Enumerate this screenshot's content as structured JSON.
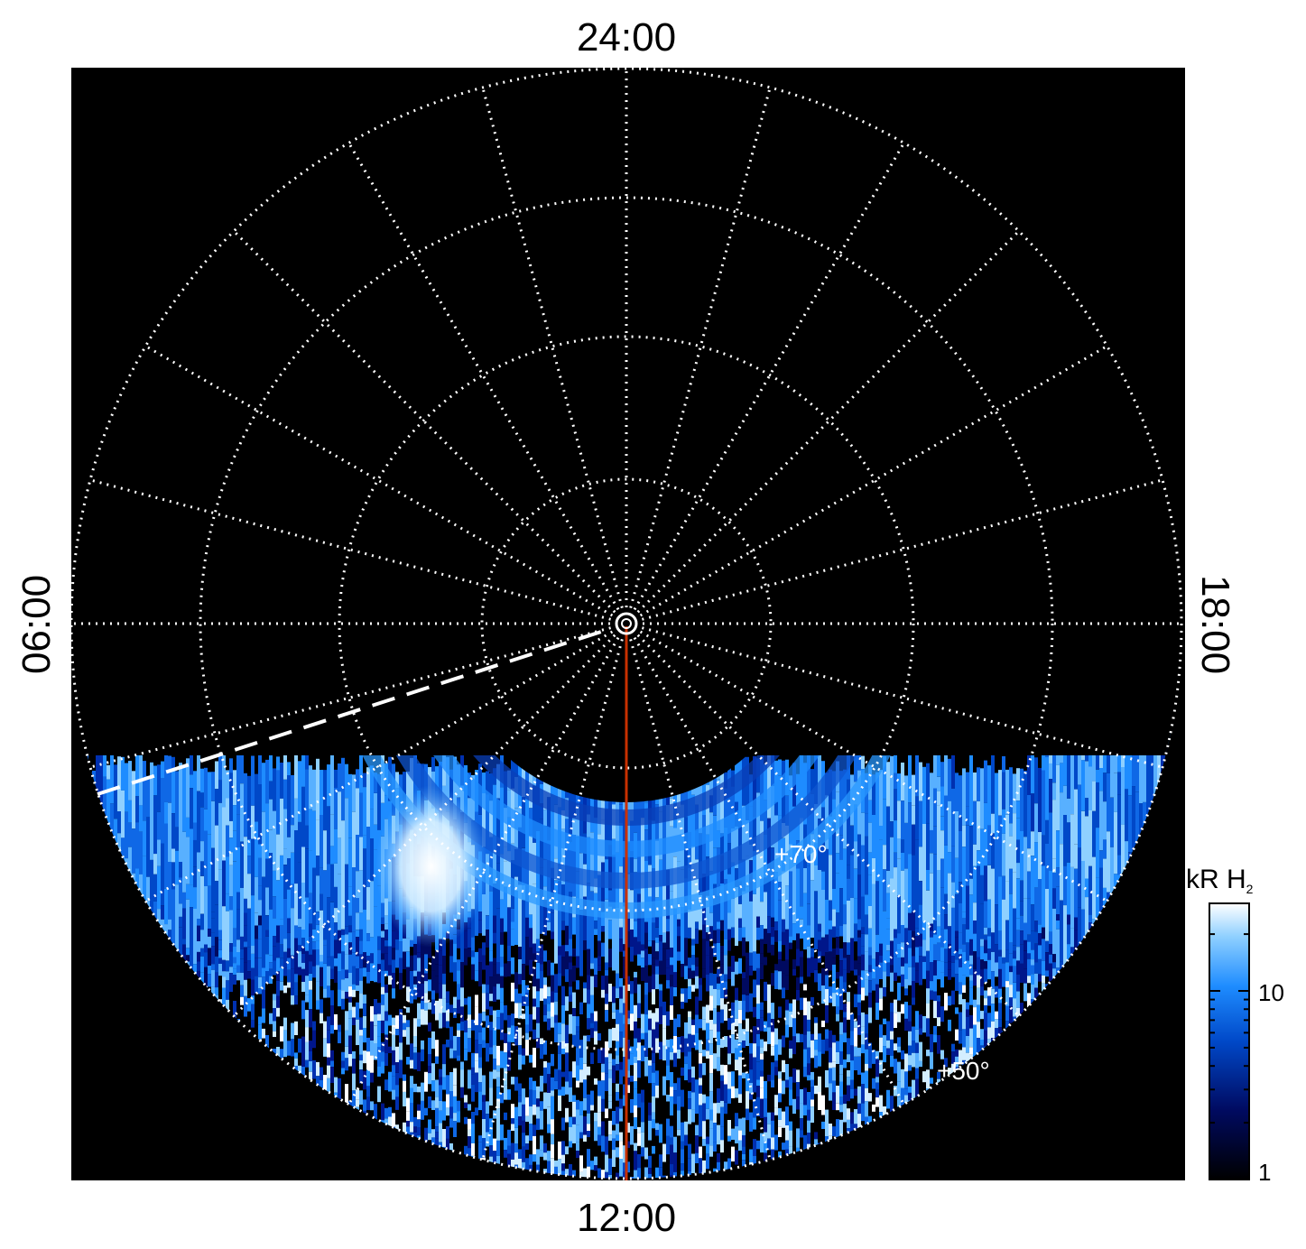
{
  "figure": {
    "labels": {
      "top": "24:00",
      "bottom": "12:00",
      "left": "06:00",
      "right": "18:00"
    },
    "latitude_labels": [
      "+70°",
      "+50°"
    ],
    "colorbar": {
      "title_main": "kR H",
      "title_sub": "2",
      "ticks": [
        "10",
        "1"
      ],
      "scale": "log",
      "colors": [
        "#000000",
        "#000a60",
        "#0048c8",
        "#1e8cff",
        "#8fd0ff",
        "#ffffff"
      ]
    },
    "colors": {
      "background": "#000000",
      "grid": "#ffffff",
      "meridian": "#c83000",
      "page": "#ffffff"
    },
    "grid": {
      "style": "dotted",
      "spokes": 24
    }
  }
}
